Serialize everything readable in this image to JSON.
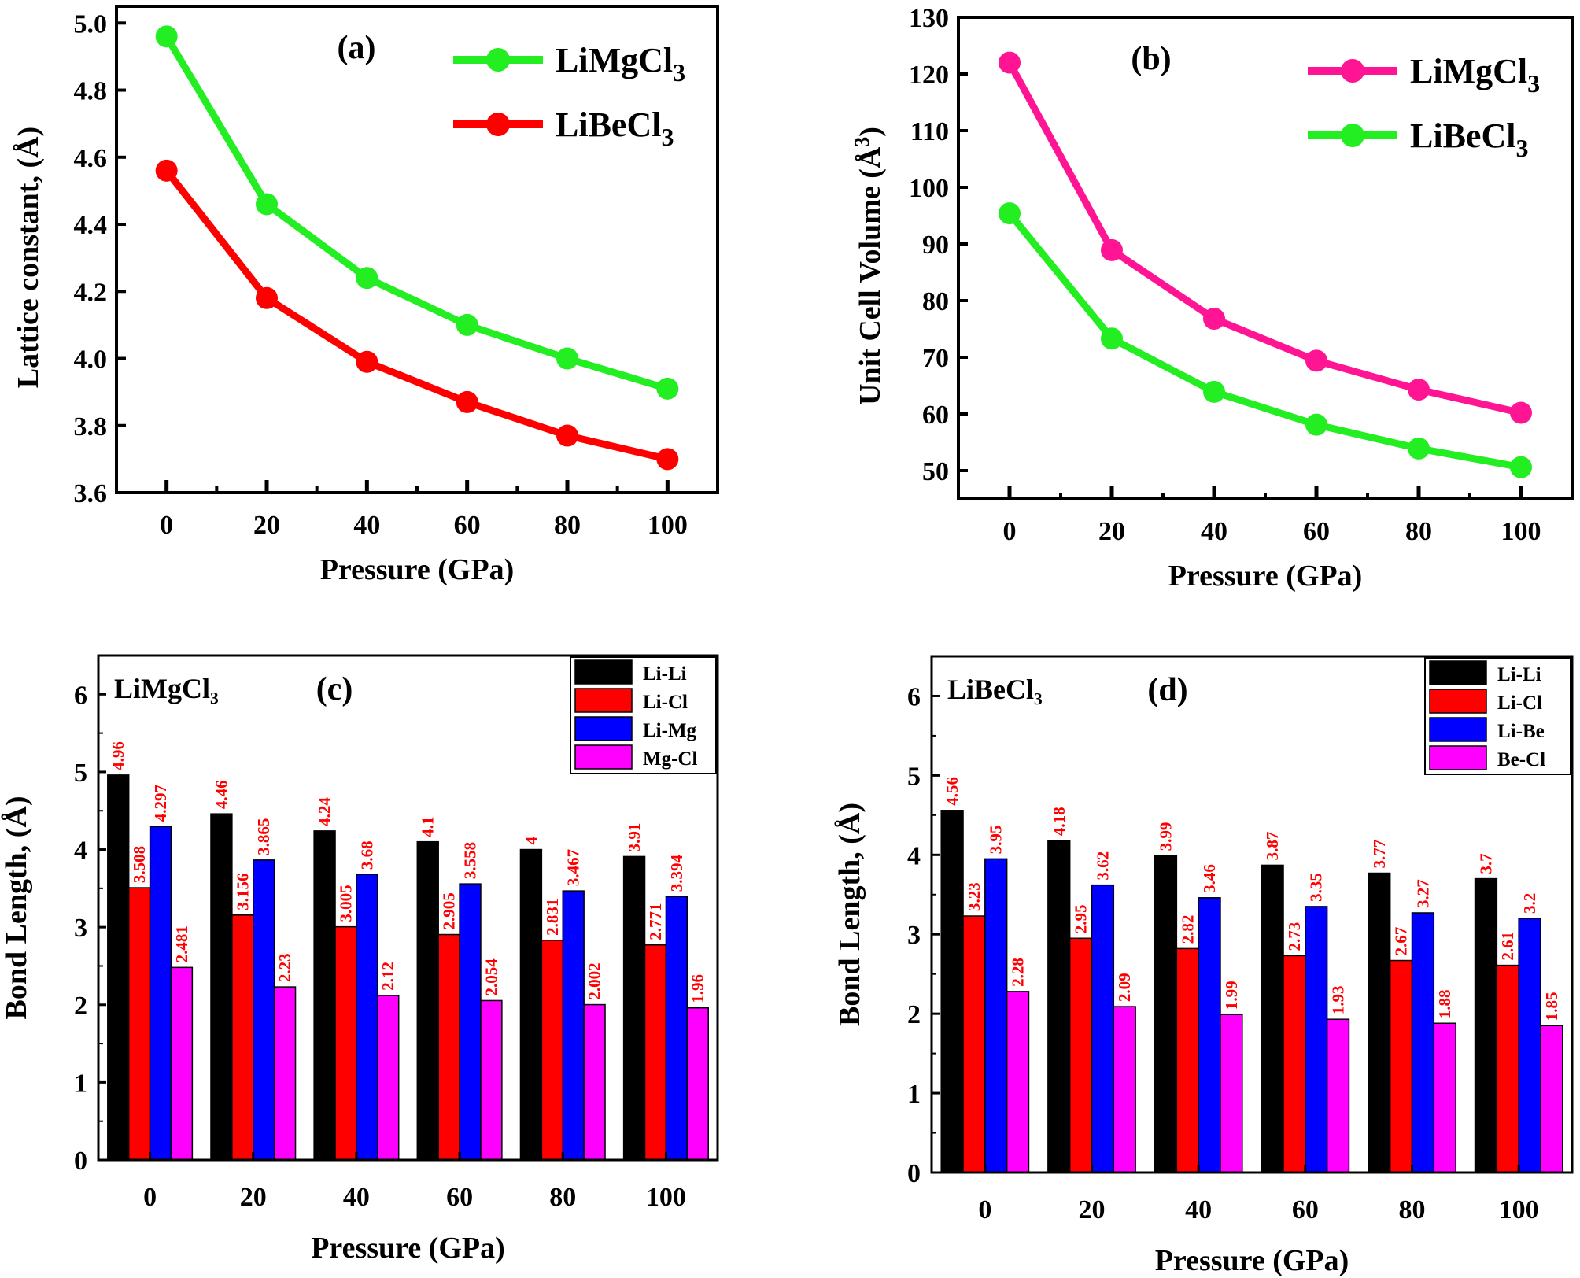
{
  "chart_data": [
    {
      "id": "a",
      "type": "line",
      "panel_label": "(a)",
      "xlabel": "Pressure (GPa)",
      "ylabel": "Lattice constant, (Å)",
      "x": [
        0,
        20,
        40,
        60,
        80,
        100
      ],
      "xticks": [
        "0",
        "20",
        "40",
        "60",
        "80",
        "100"
      ],
      "xlim": [
        -10,
        110
      ],
      "ylim": [
        3.6,
        5.05
      ],
      "yticks": [
        "3.6",
        "3.8",
        "4.0",
        "4.2",
        "4.4",
        "4.6",
        "4.8",
        "5.0"
      ],
      "ytick_values": [
        3.6,
        3.8,
        4.0,
        4.2,
        4.4,
        4.6,
        4.8,
        5.0
      ],
      "legend_position": "top-right",
      "series": [
        {
          "name": "LiMgCl",
          "subscript": "3",
          "color": "#22ee22",
          "values": [
            4.96,
            4.46,
            4.24,
            4.1,
            4.0,
            3.91
          ]
        },
        {
          "name": "LiBeCl",
          "subscript": "3",
          "color": "#ff0000",
          "values": [
            4.56,
            4.18,
            3.99,
            3.87,
            3.77,
            3.7
          ]
        }
      ]
    },
    {
      "id": "b",
      "type": "line",
      "panel_label": "(b)",
      "xlabel": "Pressure (GPa)",
      "ylabel": "Unit Cell Volume (Å",
      "ylabel_sup": "3",
      "ylabel_end": ")",
      "x": [
        0,
        20,
        40,
        60,
        80,
        100
      ],
      "xticks": [
        "0",
        "20",
        "40",
        "60",
        "80",
        "100"
      ],
      "xlim": [
        -10,
        110
      ],
      "ylim": [
        45,
        130
      ],
      "yticks": [
        "50",
        "60",
        "70",
        "80",
        "90",
        "100",
        "110",
        "120",
        "130"
      ],
      "ytick_values": [
        50,
        60,
        70,
        80,
        90,
        100,
        110,
        120,
        130
      ],
      "legend_position": "top-right",
      "series": [
        {
          "name": "LiMgCl",
          "subscript": "3",
          "color": "#ff1493",
          "values": [
            122.0,
            88.9,
            76.8,
            69.4,
            64.3,
            60.2
          ]
        },
        {
          "name": "LiBeCl",
          "subscript": "3",
          "color": "#22ee22",
          "values": [
            95.4,
            73.3,
            63.9,
            58.1,
            53.9,
            50.6
          ]
        }
      ]
    },
    {
      "id": "c",
      "type": "bar",
      "panel_label": "(c)",
      "compound_label": "LiMgCl₃",
      "xlabel": "Pressure (GPa)",
      "ylabel": "Bond Length, (Å)",
      "categories": [
        "0",
        "20",
        "40",
        "60",
        "80",
        "100"
      ],
      "ylim": [
        0,
        6.5
      ],
      "yticks": [
        "0",
        "1",
        "2",
        "3",
        "4",
        "5",
        "6"
      ],
      "ytick_values": [
        0,
        1,
        2,
        3,
        4,
        5,
        6
      ],
      "legend_position": "top-right",
      "series": [
        {
          "name": "Li-Li",
          "color": "#000000",
          "values": [
            4.96,
            4.46,
            4.24,
            4.1,
            4,
            3.91
          ],
          "labels": [
            "4.96",
            "4.46",
            "4.24",
            "4.1",
            "4",
            "3.91"
          ]
        },
        {
          "name": "Li-Cl",
          "color": "#ff0000",
          "values": [
            3.508,
            3.156,
            3.005,
            2.905,
            2.831,
            2.771
          ],
          "labels": [
            "3.508",
            "3.156",
            "3.005",
            "2.905",
            "2.831",
            "2.771"
          ]
        },
        {
          "name": "Li-Mg",
          "color": "#0000ff",
          "values": [
            4.297,
            3.865,
            3.68,
            3.558,
            3.467,
            3.394
          ],
          "labels": [
            "4.297",
            "3.865",
            "3.68",
            "3.558",
            "3.467",
            "3.394"
          ]
        },
        {
          "name": "Mg-Cl",
          "color": "#ff00ff",
          "values": [
            2.481,
            2.23,
            2.12,
            2.054,
            2.002,
            1.96
          ],
          "labels": [
            "2.481",
            "2.23",
            "2.12",
            "2.054",
            "2.002",
            "1.96"
          ]
        }
      ]
    },
    {
      "id": "d",
      "type": "bar",
      "panel_label": "(d)",
      "compound_label": "LiBeCl₃",
      "xlabel": "Pressure (GPa)",
      "ylabel": "Bond Length, (Å)",
      "categories": [
        "0",
        "20",
        "40",
        "60",
        "80",
        "100"
      ],
      "ylim": [
        0,
        6.5
      ],
      "yticks": [
        "0",
        "1",
        "2",
        "3",
        "4",
        "5",
        "6"
      ],
      "ytick_values": [
        0,
        1,
        2,
        3,
        4,
        5,
        6
      ],
      "legend_position": "top-right",
      "series": [
        {
          "name": "Li-Li",
          "color": "#000000",
          "values": [
            4.56,
            4.18,
            3.99,
            3.87,
            3.77,
            3.7
          ],
          "labels": [
            "4.56",
            "4.18",
            "3.99",
            "3.87",
            "3.77",
            "3.7"
          ]
        },
        {
          "name": "Li-Cl",
          "color": "#ff0000",
          "values": [
            3.23,
            2.95,
            2.82,
            2.73,
            2.67,
            2.61
          ],
          "labels": [
            "3.23",
            "2.95",
            "2.82",
            "2.73",
            "2.67",
            "2.61"
          ]
        },
        {
          "name": "Li-Be",
          "color": "#0000ff",
          "values": [
            3.95,
            3.62,
            3.46,
            3.35,
            3.27,
            3.2
          ],
          "labels": [
            "3.95",
            "3.62",
            "3.46",
            "3.35",
            "3.27",
            "3.2"
          ]
        },
        {
          "name": "Be-Cl",
          "color": "#ff00ff",
          "values": [
            2.28,
            2.09,
            1.99,
            1.93,
            1.88,
            1.85
          ],
          "labels": [
            "2.28",
            "2.09",
            "1.99",
            "1.93",
            "1.88",
            "1.85"
          ]
        }
      ]
    }
  ]
}
